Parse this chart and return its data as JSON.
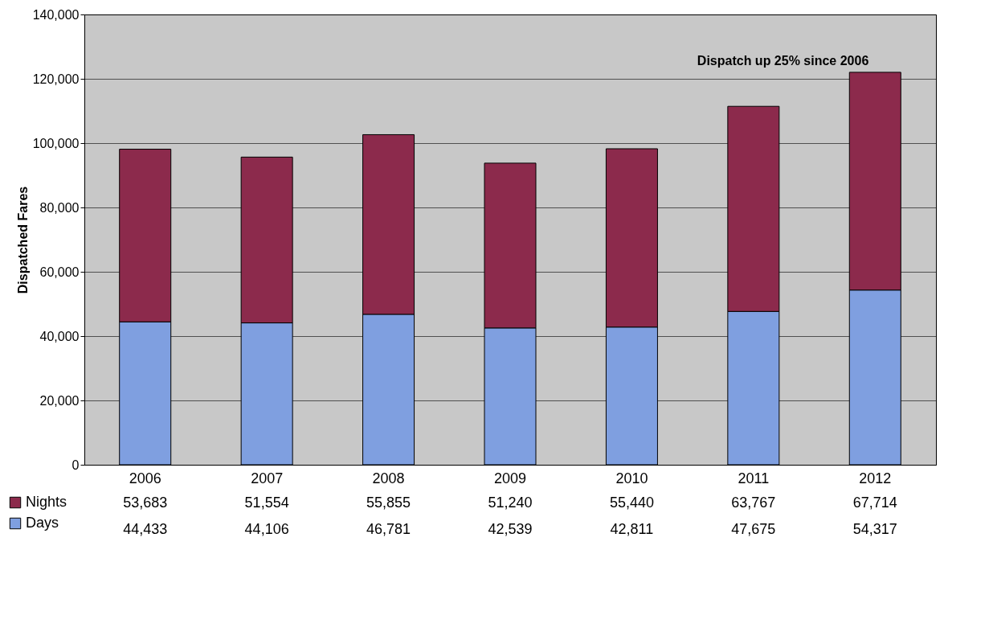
{
  "chart_data": {
    "type": "bar",
    "stacked": true,
    "ylabel": "Dispatched Fares",
    "categories": [
      "2006",
      "2007",
      "2008",
      "2009",
      "2010",
      "2011",
      "2012"
    ],
    "series": [
      {
        "name": "Days",
        "color": "#7f9fe0",
        "values": [
          44433,
          44106,
          46781,
          42539,
          42811,
          47675,
          54317
        ],
        "value_labels": [
          "44,433",
          "44,106",
          "46,781",
          "42,539",
          "42,811",
          "47,675",
          "54,317"
        ]
      },
      {
        "name": "Nights",
        "color": "#8c2a4c",
        "values": [
          53683,
          51554,
          55855,
          51240,
          55440,
          63767,
          67714
        ],
        "value_labels": [
          "53,683",
          "51,554",
          "55,855",
          "51,240",
          "55,440",
          "63,767",
          "67,714"
        ]
      }
    ],
    "ylim": [
      0,
      140000
    ],
    "yticks": [
      {
        "value": 0,
        "label": "0"
      },
      {
        "value": 20000,
        "label": "20,000"
      },
      {
        "value": 40000,
        "label": "40,000"
      },
      {
        "value": 60000,
        "label": "60,000"
      },
      {
        "value": 80000,
        "label": "80,000"
      },
      {
        "value": 100000,
        "label": "100,000"
      },
      {
        "value": 120000,
        "label": "120,000"
      },
      {
        "value": 140000,
        "label": "140,000"
      }
    ],
    "grid": "y",
    "legend": "bottom left",
    "annotations": [
      {
        "text": "Dispatch up 25% since 2006",
        "x": "2012",
        "y": 122031
      }
    ]
  }
}
